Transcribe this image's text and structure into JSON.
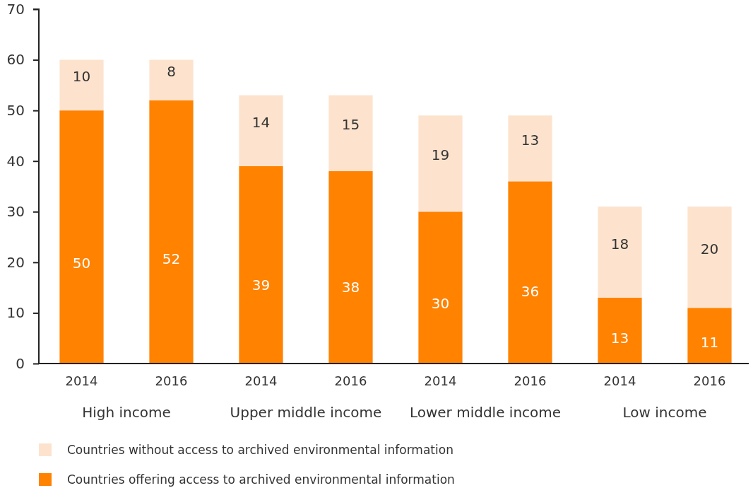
{
  "chart_data": {
    "type": "bar",
    "stacked": true,
    "categories": [
      "2014",
      "2016",
      "2014",
      "2016",
      "2014",
      "2016",
      "2014",
      "2016"
    ],
    "series": [
      {
        "name": "Countries offering access to archived environmental information",
        "color": "#ff8200",
        "values": [
          50,
          52,
          39,
          38,
          30,
          36,
          13,
          11
        ]
      },
      {
        "name": "Countries without access to archived environmental information",
        "color": "#fde3cd",
        "values": [
          10,
          8,
          14,
          15,
          19,
          13,
          18,
          20
        ]
      }
    ],
    "ylim": [
      0,
      70
    ],
    "yticks": [
      0,
      10,
      20,
      30,
      40,
      50,
      60,
      70
    ],
    "grid": false,
    "data_labels": true,
    "legend": "bottom",
    "annotations": [
      "High income",
      "Upper middle income",
      "Lower middle income",
      "Low income"
    ]
  }
}
